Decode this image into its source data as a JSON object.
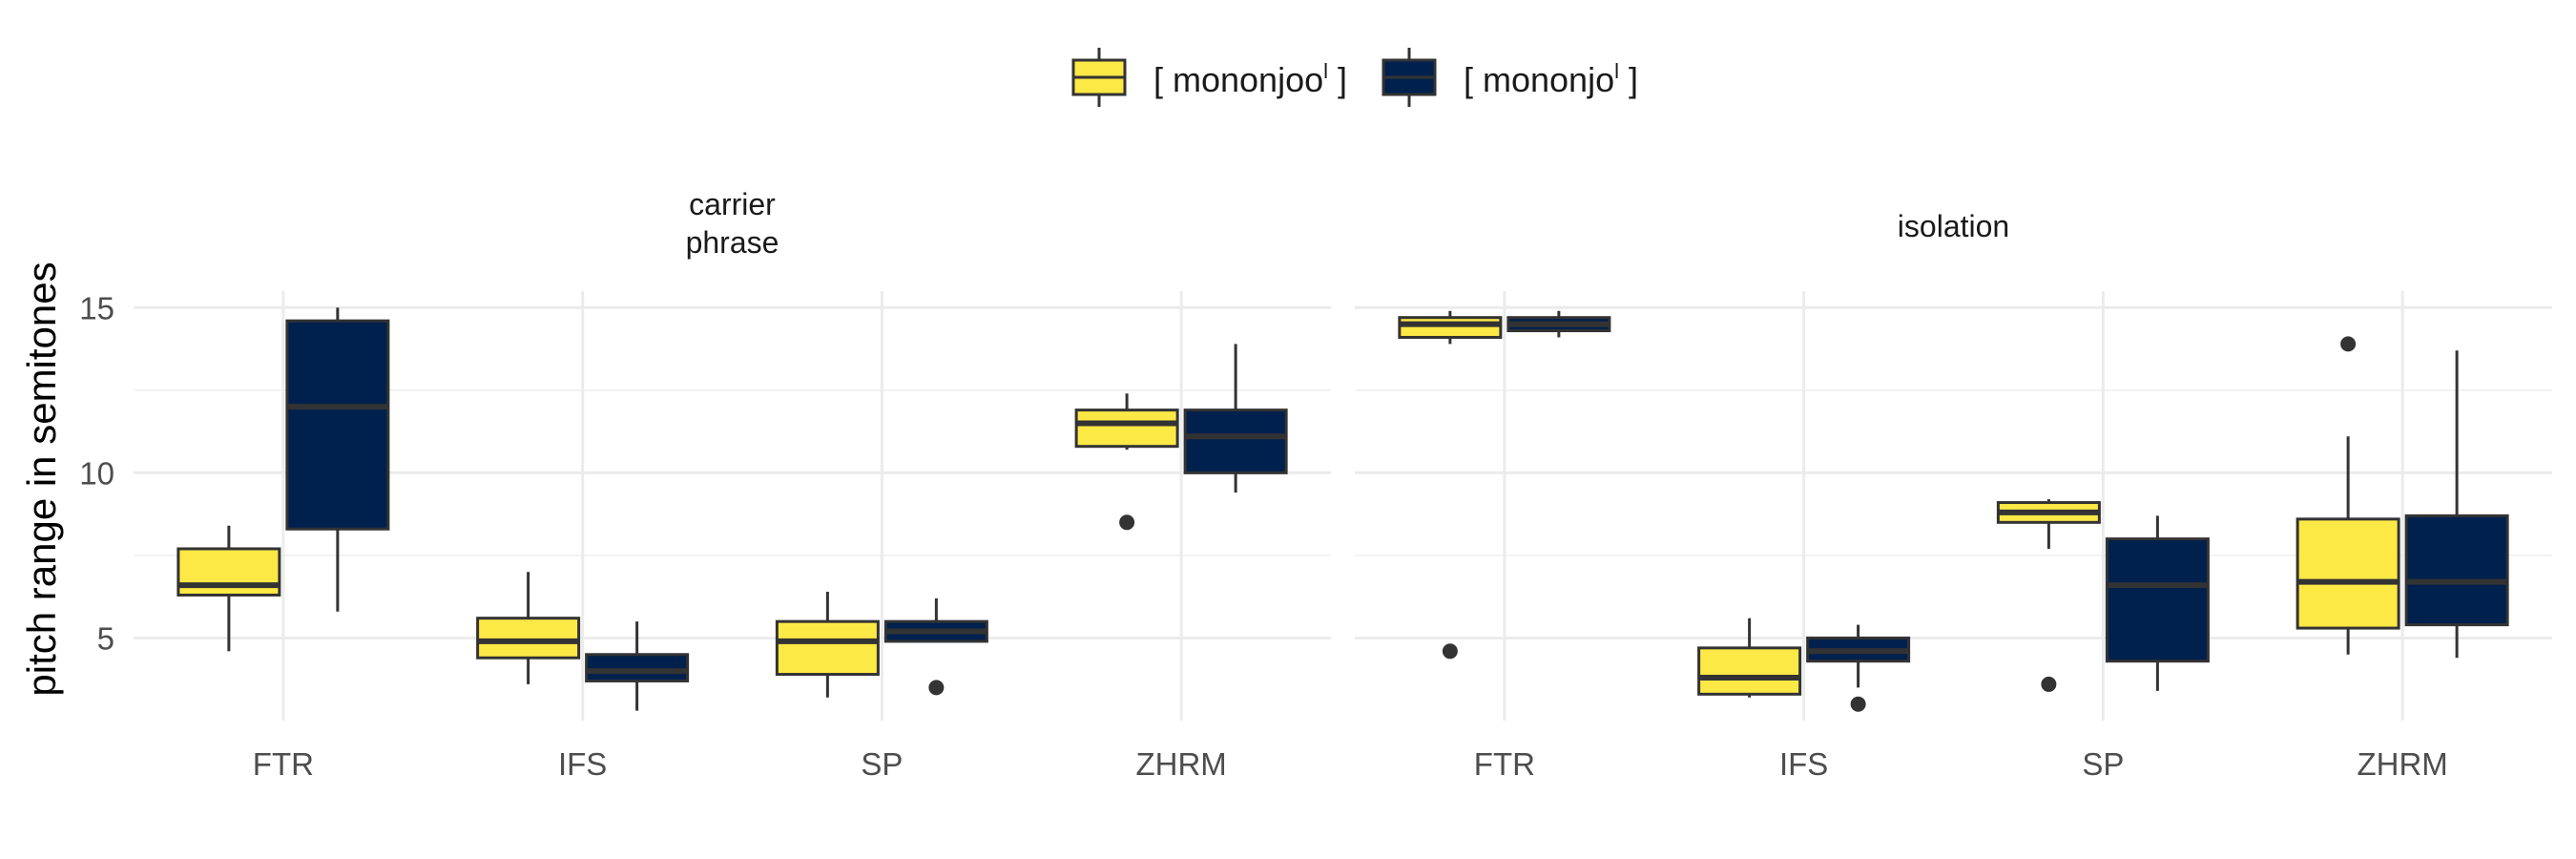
{
  "chart_data": {
    "type": "boxplot",
    "ylabel": "pitch range in semitones",
    "xlabel": "",
    "ylim": [
      2.5,
      15.5
    ],
    "yticks": [
      5,
      10,
      15
    ],
    "categories": [
      "FTR",
      "IFS",
      "SP",
      "ZHRM"
    ],
    "legend": {
      "position": "top",
      "entries": [
        {
          "label": "[ mononjoo",
          "sup": "l",
          "close": " ]",
          "color": "#fde945"
        },
        {
          "label": "[ mononjo",
          "sup": "l",
          "close": " ]",
          "color": "#00204d"
        }
      ]
    },
    "panels": [
      {
        "title_lines": [
          "carrier",
          "phrase"
        ],
        "groups": [
          {
            "category": "FTR",
            "series": 0,
            "whisker_low": 4.6,
            "q1": 6.3,
            "median": 6.6,
            "q3": 7.7,
            "whisker_high": 8.4,
            "outliers": []
          },
          {
            "category": "FTR",
            "series": 1,
            "whisker_low": 5.8,
            "q1": 8.3,
            "median": 12.0,
            "q3": 14.6,
            "whisker_high": 15.0,
            "outliers": []
          },
          {
            "category": "IFS",
            "series": 0,
            "whisker_low": 3.6,
            "q1": 4.4,
            "median": 4.9,
            "q3": 5.6,
            "whisker_high": 7.0,
            "outliers": []
          },
          {
            "category": "IFS",
            "series": 1,
            "whisker_low": 2.8,
            "q1": 3.7,
            "median": 4.0,
            "q3": 4.5,
            "whisker_high": 5.5,
            "outliers": []
          },
          {
            "category": "SP",
            "series": 0,
            "whisker_low": 3.2,
            "q1": 3.9,
            "median": 4.9,
            "q3": 5.5,
            "whisker_high": 6.4,
            "outliers": []
          },
          {
            "category": "SP",
            "series": 1,
            "whisker_low": 4.9,
            "q1": 4.9,
            "median": 5.2,
            "q3": 5.5,
            "whisker_high": 6.2,
            "outliers": [
              3.5
            ]
          },
          {
            "category": "ZHRM",
            "series": 0,
            "whisker_low": 10.7,
            "q1": 10.8,
            "median": 11.5,
            "q3": 11.9,
            "whisker_high": 12.4,
            "outliers": [
              8.5
            ]
          },
          {
            "category": "ZHRM",
            "series": 1,
            "whisker_low": 9.4,
            "q1": 10.0,
            "median": 11.1,
            "q3": 11.9,
            "whisker_high": 13.9,
            "outliers": []
          }
        ]
      },
      {
        "title_lines": [
          "isolation"
        ],
        "groups": [
          {
            "category": "FTR",
            "series": 0,
            "whisker_low": 13.9,
            "q1": 14.1,
            "median": 14.5,
            "q3": 14.7,
            "whisker_high": 14.9,
            "outliers": [
              4.6
            ]
          },
          {
            "category": "FTR",
            "series": 1,
            "whisker_low": 14.1,
            "q1": 14.3,
            "median": 14.5,
            "q3": 14.7,
            "whisker_high": 14.9,
            "outliers": []
          },
          {
            "category": "IFS",
            "series": 0,
            "whisker_low": 3.2,
            "q1": 3.3,
            "median": 3.8,
            "q3": 4.7,
            "whisker_high": 5.6,
            "outliers": []
          },
          {
            "category": "IFS",
            "series": 1,
            "whisker_low": 3.5,
            "q1": 4.3,
            "median": 4.6,
            "q3": 5.0,
            "whisker_high": 5.4,
            "outliers": [
              3.0
            ]
          },
          {
            "category": "SP",
            "series": 0,
            "whisker_low": 7.7,
            "q1": 8.5,
            "median": 8.8,
            "q3": 9.1,
            "whisker_high": 9.2,
            "outliers": [
              3.6
            ]
          },
          {
            "category": "SP",
            "series": 1,
            "whisker_low": 3.4,
            "q1": 4.3,
            "median": 6.6,
            "q3": 8.0,
            "whisker_high": 8.7,
            "outliers": []
          },
          {
            "category": "ZHRM",
            "series": 0,
            "whisker_low": 4.5,
            "q1": 5.3,
            "median": 6.7,
            "q3": 8.6,
            "whisker_high": 11.1,
            "outliers": [
              13.9
            ]
          },
          {
            "category": "ZHRM",
            "series": 1,
            "whisker_low": 4.4,
            "q1": 5.4,
            "median": 6.7,
            "q3": 8.7,
            "whisker_high": 13.7,
            "outliers": []
          }
        ]
      }
    ]
  }
}
